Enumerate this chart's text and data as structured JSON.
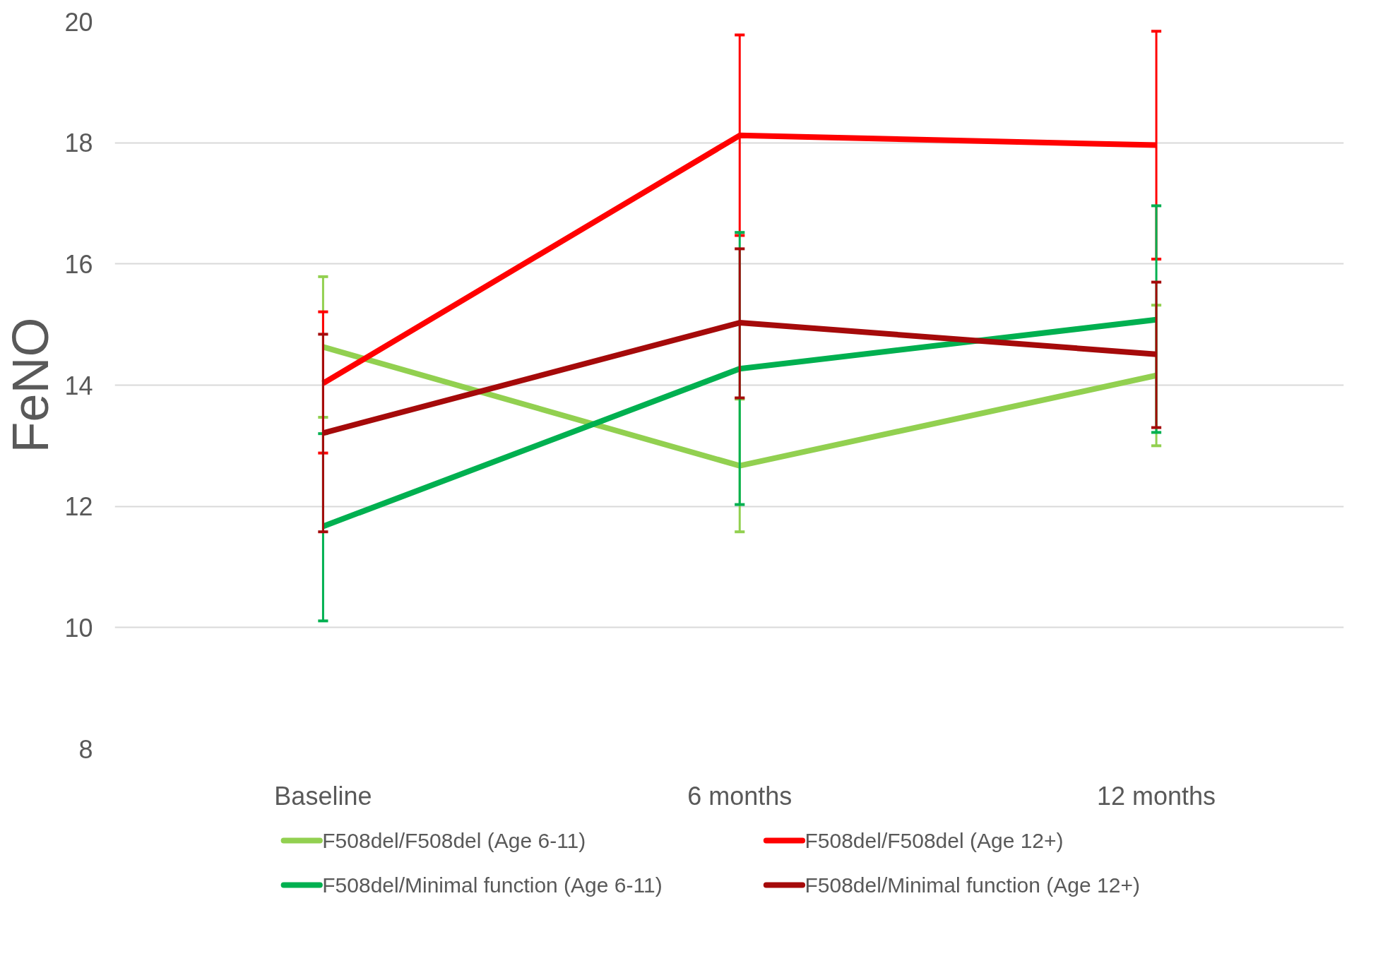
{
  "chart_data": {
    "type": "line",
    "ylabel": "FeNO",
    "categories": [
      "Baseline",
      "6 months",
      "12 months"
    ],
    "ylim": [
      8,
      20
    ],
    "yticks": [
      8,
      10,
      12,
      14,
      16,
      18,
      20
    ],
    "grid": "y",
    "legend": "bottom",
    "marker": "none",
    "line_style": "solid",
    "series": [
      {
        "name": "F508del/F508del (Age 6-11)",
        "color": "#92d050",
        "values": [
          14.63,
          12.67,
          14.16
        ],
        "errors": [
          [
            13.47,
            15.79
          ],
          [
            11.58,
            13.77
          ],
          [
            13.0,
            15.32
          ]
        ]
      },
      {
        "name": "F508del/F508del (Age 12+)",
        "color": "#ff0000",
        "values": [
          14.03,
          18.12,
          17.96
        ],
        "errors": [
          [
            12.88,
            15.21
          ],
          [
            16.47,
            19.78
          ],
          [
            16.08,
            19.84
          ]
        ]
      },
      {
        "name": "F508del/Minimal function (Age 6-11)",
        "color": "#00b050",
        "values": [
          11.67,
          14.27,
          15.08
        ],
        "errors": [
          [
            10.11,
            13.2
          ],
          [
            12.03,
            16.52
          ],
          [
            13.22,
            16.96
          ]
        ]
      },
      {
        "name": "F508del/Minimal function (Age 12+)",
        "color": "#a50a0a",
        "values": [
          13.21,
          15.03,
          14.51
        ],
        "errors": [
          [
            11.58,
            14.84
          ],
          [
            13.79,
            16.25
          ],
          [
            13.3,
            15.7
          ]
        ]
      }
    ]
  }
}
